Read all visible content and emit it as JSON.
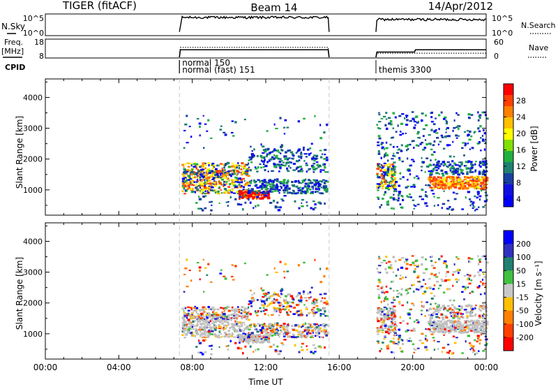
{
  "header": {
    "radar": "TIGER (fitACF)",
    "beam": "Beam 14",
    "date": "14/Apr/2012"
  },
  "chart_data": [
    {
      "type": "line",
      "panel": "noise",
      "ylabel_left": "N.Sky",
      "ylabel_right": "N.Search",
      "yticks_left": [
        "10^5",
        "10^0"
      ],
      "yticks_right": [
        "10^5",
        "10^0"
      ],
      "series": [
        {
          "name": "N.Sky",
          "segments": [
            [
              [
                7.3,
                0.15
              ],
              [
                7.45,
                0.85
              ],
              [
                15.4,
                0.85
              ],
              [
                15.45,
                0.15
              ]
            ],
            [
              [
                18.0,
                0.15
              ],
              [
                18.05,
                0.75
              ],
              [
                24.0,
                0.78
              ]
            ]
          ]
        }
      ]
    },
    {
      "type": "line",
      "panel": "frequency",
      "ylabel_left": "Freq. [MHz]",
      "ylabel_right": "Nave",
      "yticks_left": [
        "18",
        "8"
      ],
      "yticks_right": [
        "60",
        "0"
      ],
      "series": [
        {
          "name": "Freq. [MHz]",
          "segments": [
            [
              [
                7.3,
                8
              ],
              [
                7.35,
                12.3
              ],
              [
                15.4,
                12.3
              ],
              [
                15.45,
                8
              ]
            ],
            [
              [
                18.0,
                8
              ],
              [
                18.05,
                11
              ],
              [
                20.1,
                11
              ],
              [
                20.15,
                12.3
              ],
              [
                24.0,
                12.3
              ]
            ]
          ]
        },
        {
          "name": "Nave",
          "segments": [
            [
              [
                7.3,
                0
              ],
              [
                7.35,
                34
              ],
              [
                15.4,
                34
              ],
              [
                15.45,
                0
              ]
            ],
            [
              [
                18.0,
                0
              ],
              [
                18.05,
                14
              ],
              [
                24.0,
                14
              ]
            ]
          ]
        }
      ]
    },
    {
      "type": "table",
      "panel": "cpid",
      "label": "CPID",
      "entries": [
        {
          "time": 7.3,
          "text": "normal 150"
        },
        {
          "time": 7.3,
          "text": "normal (fast) 151"
        },
        {
          "time": 18.0,
          "text": "themis 3300"
        }
      ]
    },
    {
      "type": "heatmap",
      "panel": "power",
      "xlabel": "",
      "ylabel": "Slant Range [km]",
      "xlim": [
        0,
        24
      ],
      "ylim": [
        180,
        4600
      ],
      "yticks": [
        1000,
        2000,
        3000,
        4000
      ],
      "colorbar": {
        "label": "Power [dB]",
        "ticks": [
          "28",
          "24",
          "20",
          "16",
          "12",
          "8",
          "4"
        ],
        "colors": [
          "#ff0000",
          "#ff4000",
          "#ff8000",
          "#ffc000",
          "#ffff00",
          "#80e000",
          "#20b040",
          "#208070",
          "#1840a0",
          "#1010e0",
          "#0000ff"
        ]
      },
      "features": [
        {
          "t0": 7.4,
          "t1": 15.3,
          "r0": 850,
          "r1": 2350,
          "level": "mixed"
        },
        {
          "t0": 8.2,
          "t1": 11.0,
          "r0": 1000,
          "r1": 1500,
          "level": "high"
        },
        {
          "t0": 10.5,
          "t1": 12.0,
          "r0": 700,
          "r1": 900,
          "level": "very high"
        },
        {
          "t0": 18.0,
          "t1": 24.0,
          "r0": 300,
          "r1": 3500,
          "level": "mixed"
        },
        {
          "t0": 21.0,
          "t1": 24.0,
          "r0": 1050,
          "r1": 1350,
          "level": "high"
        }
      ]
    },
    {
      "type": "heatmap",
      "panel": "velocity",
      "xlabel": "Time UT",
      "ylabel": "Slant Range [km]",
      "xlim": [
        0,
        24
      ],
      "ylim": [
        180,
        4600
      ],
      "xticks": [
        "00:00",
        "04:00",
        "08:00",
        "12:00",
        "16:00",
        "20:00",
        "00:00"
      ],
      "yticks": [
        1000,
        2000,
        3000,
        4000
      ],
      "colorbar": {
        "label": "Velocity [m s⁻¹]",
        "ticks": [
          "200",
          "100",
          "50",
          "15",
          "-15",
          "-50",
          "-100",
          "-200"
        ],
        "colors": [
          "#0000ff",
          "#3030c0",
          "#208070",
          "#40c040",
          "#c8c8c8",
          "#ffc000",
          "#ff8000",
          "#ff4000",
          "#ff0000"
        ]
      },
      "ground_scatter_color": "#c0c0c0",
      "features": [
        {
          "t0": 7.4,
          "t1": 15.3,
          "r0": 800,
          "r1": 1300,
          "level": "ground scatter"
        },
        {
          "t0": 18.0,
          "t1": 24.0,
          "r0": 800,
          "r1": 1700,
          "level": "ground scatter"
        }
      ]
    }
  ]
}
